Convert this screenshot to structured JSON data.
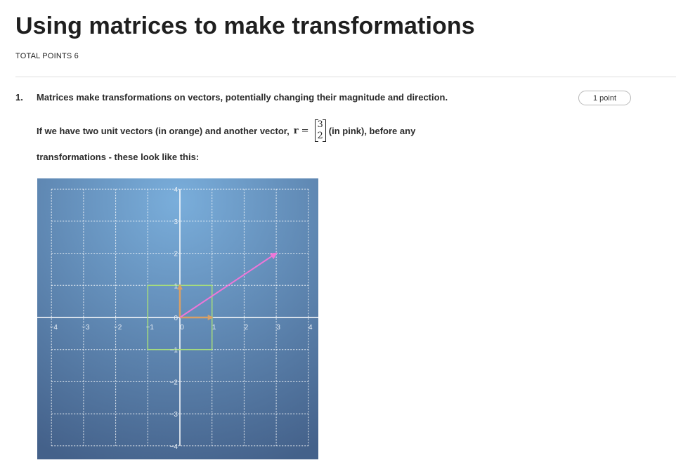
{
  "page": {
    "title": "Using matrices to make transformations",
    "total_points": "TOTAL POINTS 6"
  },
  "question": {
    "number": "1.",
    "text": "Matrices make transformations on vectors, potentially changing their magnitude and direction.",
    "points": "1 point",
    "para_before": "If we have two unit vectors (in orange) and another vector,",
    "math_var": "r",
    "math_eq": "=",
    "vector_top": "3",
    "vector_bottom": "2",
    "para_after": "(in pink), before any",
    "para_line2": "transformations - these look like this:"
  },
  "figure": {
    "x_ticks": [
      "−4",
      "−3",
      "−2",
      "−1",
      "0",
      "1",
      "2",
      "3",
      "4"
    ],
    "y_ticks": [
      "4",
      "3",
      "2",
      "1",
      "0",
      "−1",
      "−2",
      "−3",
      "−4"
    ],
    "x_range": [
      -4,
      4
    ],
    "y_range": [
      -4,
      4
    ],
    "grid": "dashed",
    "vectors": [
      {
        "name": "unit vector i",
        "from": [
          0,
          0
        ],
        "to": [
          1,
          0
        ],
        "color": "#d9a066"
      },
      {
        "name": "unit vector j",
        "from": [
          0,
          0
        ],
        "to": [
          0,
          1
        ],
        "color": "#d9a066"
      },
      {
        "name": "vector r",
        "from": [
          0,
          0
        ],
        "to": [
          3,
          2
        ],
        "color": "#ee77d8"
      }
    ],
    "square": {
      "from": [
        -1,
        -1
      ],
      "to": [
        1,
        1
      ],
      "color": "#a6dc7c"
    },
    "background_colors": [
      "#78aad6",
      "#46648c"
    ]
  }
}
